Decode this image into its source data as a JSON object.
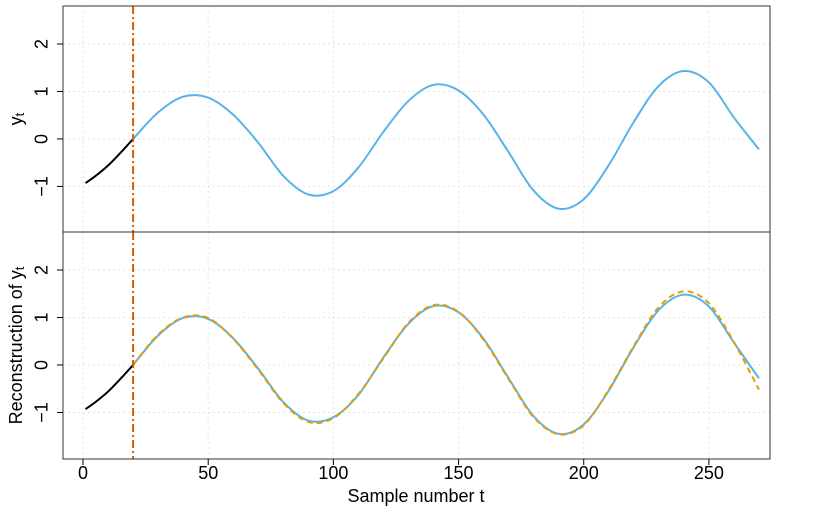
{
  "chart_data": [
    {
      "type": "line",
      "ylabel": "y",
      "ylabel_subscript": "t",
      "xlim": [
        -8,
        274.4
      ],
      "ylim": [
        -1.96,
        2.8
      ],
      "yticks": [
        {
          "value": -1,
          "label": "−1"
        },
        0,
        1,
        2
      ],
      "grid": true,
      "vline": 20,
      "vline_color": "#d55e00",
      "series": [
        {
          "color": "#000000",
          "dash": "solid",
          "x": [
            1,
            5,
            10,
            15,
            20
          ],
          "values": [
            -0.93,
            -0.78,
            -0.56,
            -0.29,
            0
          ]
        },
        {
          "color": "#56b4e9",
          "dash": "solid",
          "x": [
            20,
            30,
            40,
            50,
            60,
            70,
            80,
            90,
            100,
            110,
            120,
            130,
            140,
            150,
            160,
            170,
            180,
            190,
            200,
            210,
            220,
            230,
            240,
            250,
            260,
            270
          ],
          "values": [
            0,
            0.56,
            0.89,
            0.87,
            0.51,
            -0.08,
            -0.78,
            -1.17,
            -1.1,
            -0.6,
            0.15,
            0.8,
            1.14,
            1.02,
            0.51,
            -0.28,
            -1.09,
            -1.47,
            -1.27,
            -0.55,
            0.36,
            1.12,
            1.43,
            1.19,
            0.45,
            -0.22
          ]
        }
      ]
    },
    {
      "type": "line",
      "ylabel": "Reconstruction of y",
      "ylabel_subscript": "t",
      "xlabel": "Sample number t",
      "xlim": [
        -8,
        274.4
      ],
      "ylim": [
        -1.98,
        2.8
      ],
      "xticks": [
        0,
        50,
        100,
        150,
        200,
        250
      ],
      "yticks": [
        {
          "value": -1,
          "label": "−1"
        },
        0,
        1,
        2
      ],
      "grid": true,
      "vline": 20,
      "vline_color": "#d55e00",
      "series": [
        {
          "color": "#000000",
          "dash": "solid",
          "x": [
            1,
            5,
            10,
            15,
            20
          ],
          "values": [
            -0.93,
            -0.78,
            -0.56,
            -0.29,
            0
          ]
        },
        {
          "color": "#56b4e9",
          "dash": "solid",
          "x": [
            20,
            30,
            40,
            50,
            60,
            70,
            80,
            90,
            100,
            110,
            120,
            130,
            140,
            150,
            160,
            170,
            180,
            190,
            200,
            210,
            220,
            230,
            240,
            250,
            260,
            270
          ],
          "values": [
            0,
            0.62,
            0.99,
            0.97,
            0.56,
            -0.08,
            -0.78,
            -1.17,
            -1.1,
            -0.63,
            0.16,
            0.87,
            1.24,
            1.11,
            0.55,
            -0.28,
            -1.08,
            -1.45,
            -1.25,
            -0.54,
            0.38,
            1.16,
            1.48,
            1.23,
            0.47,
            -0.28
          ]
        },
        {
          "color": "#e69f00",
          "dash": "dashed",
          "x": [
            20,
            30,
            40,
            50,
            60,
            70,
            80,
            90,
            100,
            110,
            120,
            130,
            140,
            150,
            160,
            170,
            180,
            190,
            200,
            210,
            220,
            230,
            240,
            250,
            260,
            270
          ],
          "values": [
            0,
            0.64,
            1.0,
            0.99,
            0.55,
            -0.1,
            -0.8,
            -1.2,
            -1.12,
            -0.61,
            0.14,
            0.89,
            1.26,
            1.12,
            0.53,
            -0.3,
            -1.1,
            -1.46,
            -1.27,
            -0.52,
            0.4,
            1.22,
            1.55,
            1.3,
            0.48,
            -0.52
          ]
        }
      ]
    }
  ]
}
